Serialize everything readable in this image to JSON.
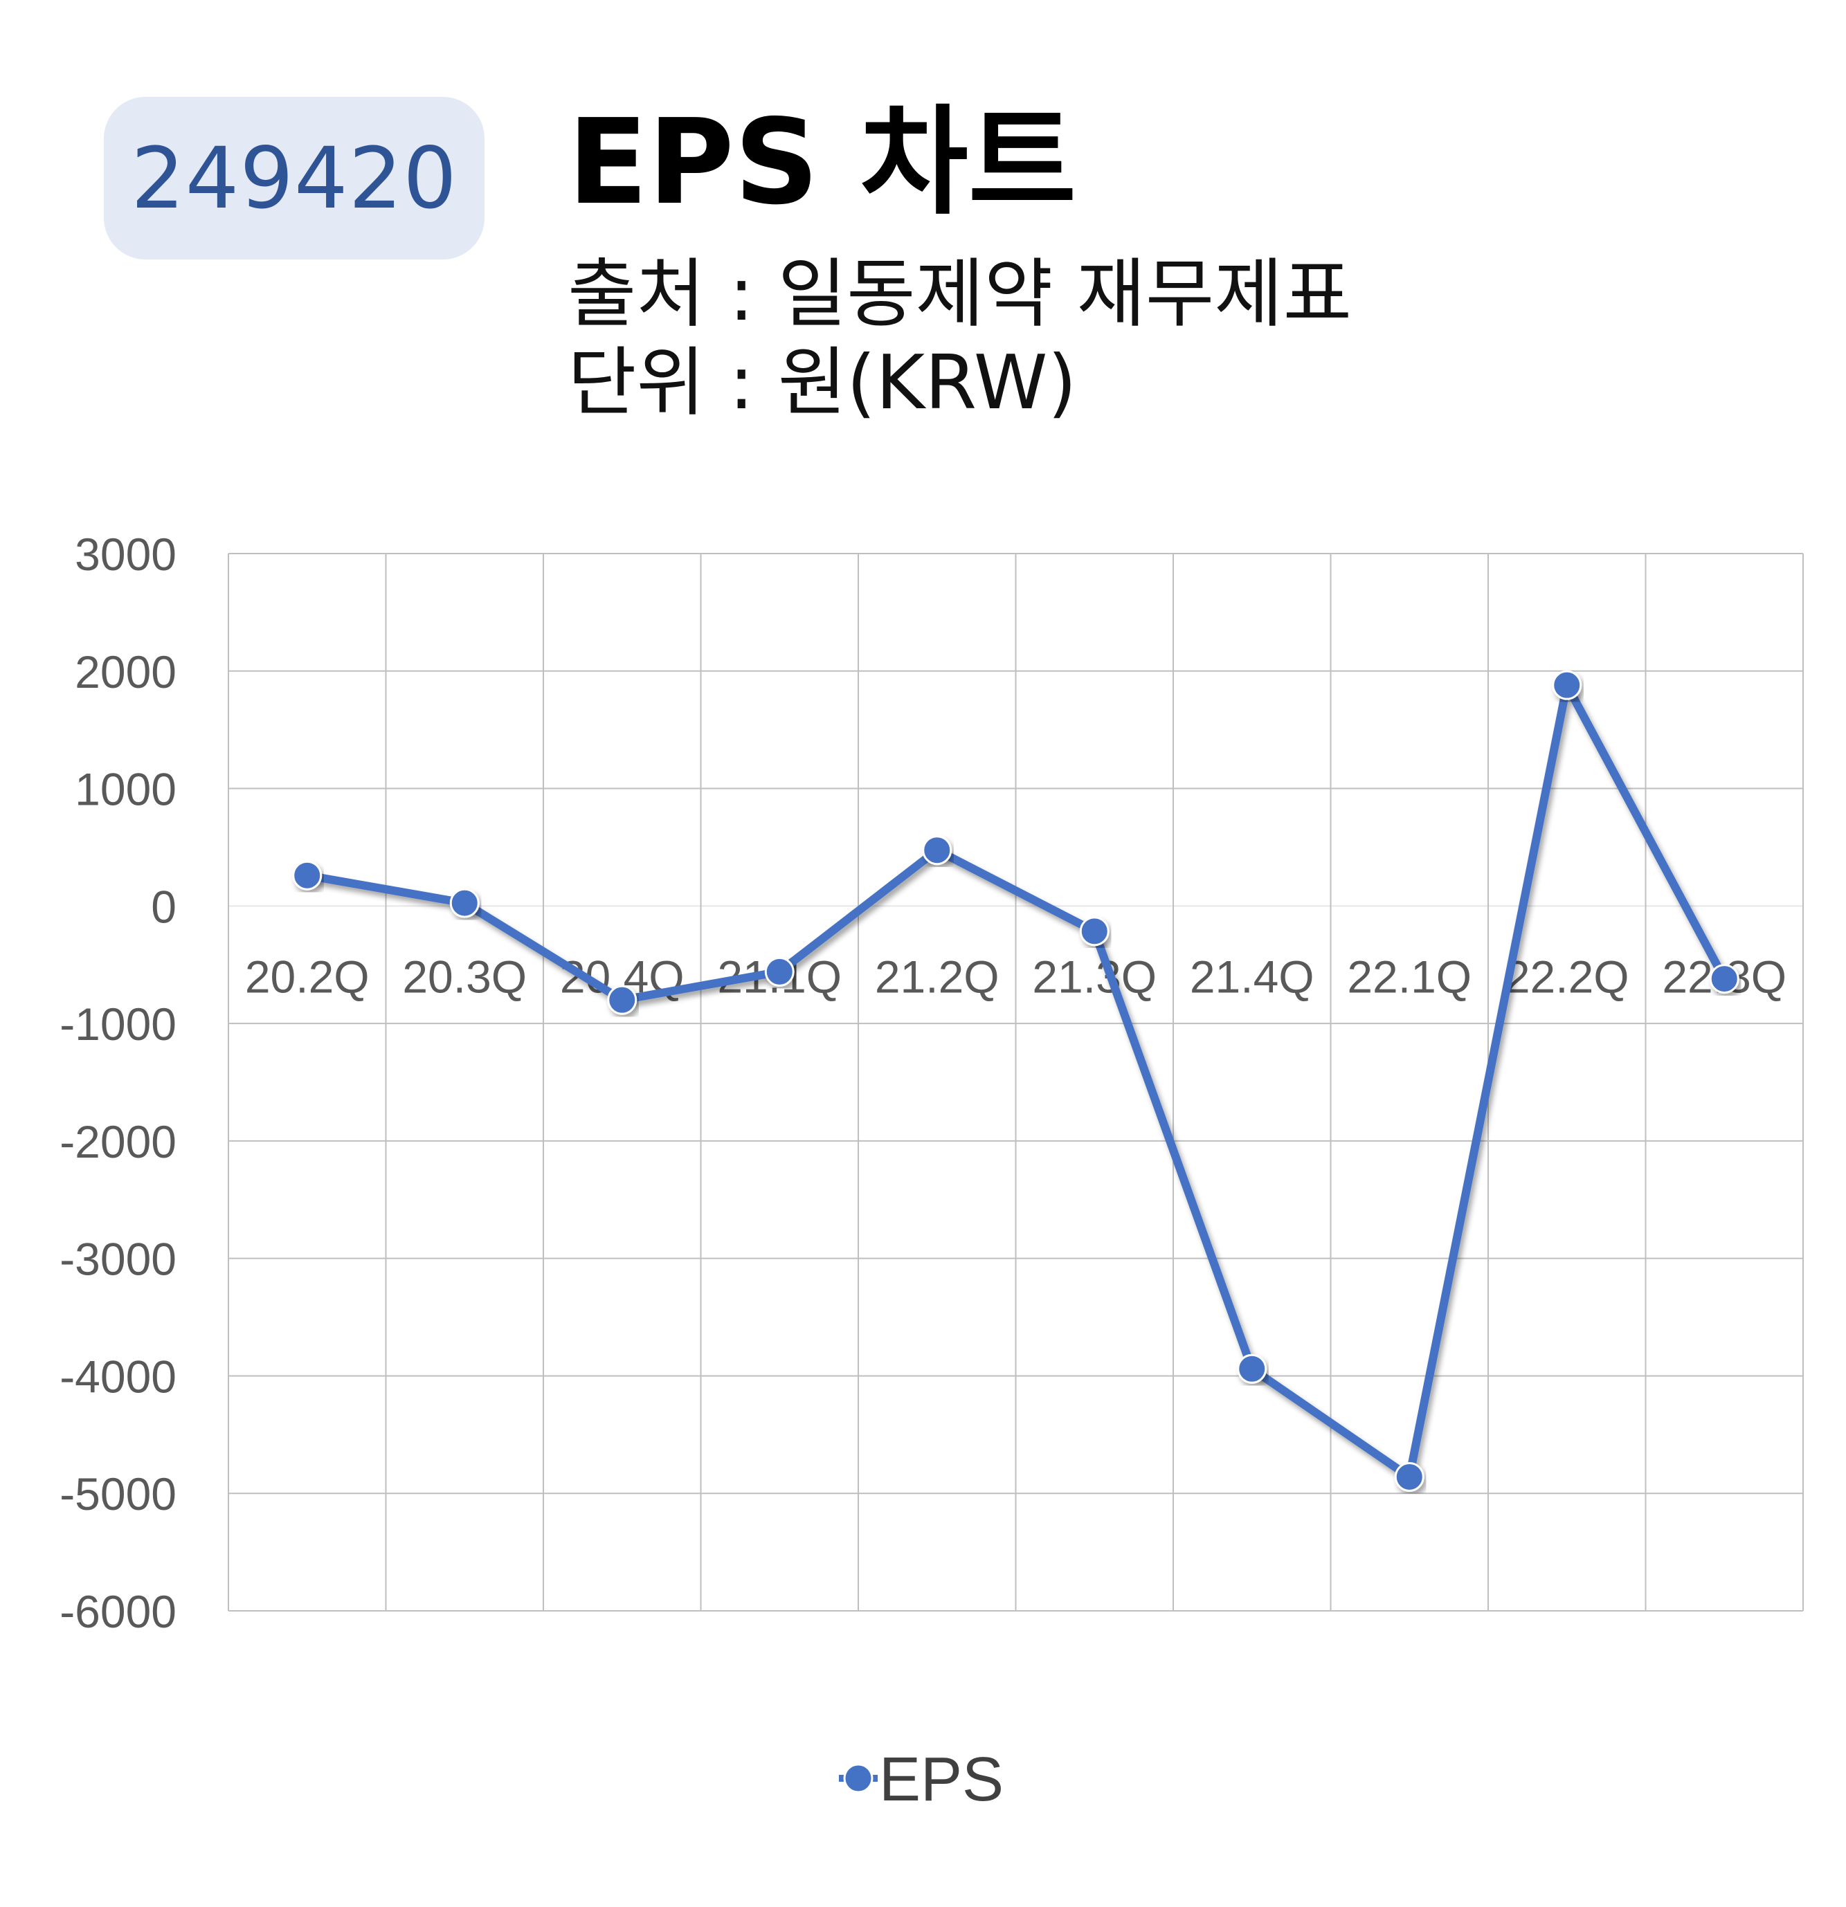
{
  "header": {
    "code": "249420",
    "title": "EPS 차트",
    "source": "출처 : 일동제약 재무제표",
    "unit": "단위 : 원(KRW)"
  },
  "colors": {
    "series": "#4472c4",
    "badge_bg": "#e3e9f5",
    "badge_text": "#2f5496",
    "grid": "#bfbfbf"
  },
  "chart_data": {
    "type": "line",
    "categories": [
      "20.2Q",
      "20.3Q",
      "20.4Q",
      "21.1Q",
      "21.2Q",
      "21.3Q",
      "21.4Q",
      "22.1Q",
      "22.2Q",
      "22.3Q"
    ],
    "series": [
      {
        "name": "EPS",
        "values": [
          260,
          25,
          -800,
          -560,
          475,
          -215,
          -3940,
          -4860,
          1880,
          -620
        ]
      }
    ],
    "ylim": [
      -6000,
      3000
    ],
    "yticks": [
      3000,
      2000,
      1000,
      0,
      -1000,
      -2000,
      -3000,
      -4000,
      -5000,
      -6000
    ],
    "grid": true,
    "legend": "bottom"
  }
}
